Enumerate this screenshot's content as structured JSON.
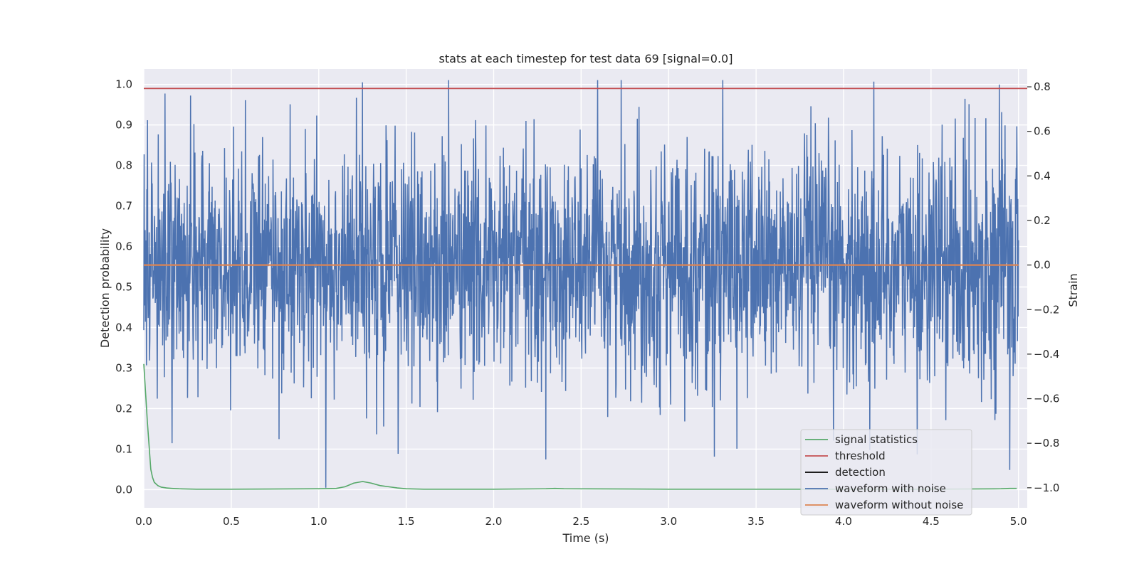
{
  "chart_data": {
    "type": "line",
    "title": "stats at each timestep for test data 69 [signal=0.0]",
    "xlabel": "Time (s)",
    "ylabel": "Detection probability",
    "y2label": "Strain",
    "xlim": [
      0.0,
      5.05
    ],
    "ylim": [
      -0.045,
      1.038
    ],
    "y2lim": [
      -1.09,
      0.88
    ],
    "x_ticks": [
      0.0,
      0.5,
      1.0,
      1.5,
      2.0,
      2.5,
      3.0,
      3.5,
      4.0,
      4.5,
      5.0
    ],
    "x_tick_labels": [
      "0.0",
      "0.5",
      "1.0",
      "1.5",
      "2.0",
      "2.5",
      "3.0",
      "3.5",
      "4.0",
      "4.5",
      "5.0"
    ],
    "y_ticks": [
      0.0,
      0.1,
      0.2,
      0.3,
      0.4,
      0.5,
      0.6,
      0.7,
      0.8,
      0.9,
      1.0
    ],
    "y_tick_labels": [
      "0.0",
      "0.1",
      "0.2",
      "0.3",
      "0.4",
      "0.5",
      "0.6",
      "0.7",
      "0.8",
      "0.9",
      "1.0"
    ],
    "y2_ticks": [
      -1.0,
      -0.8,
      -0.6,
      -0.4,
      -0.2,
      0.0,
      0.2,
      0.4,
      0.6,
      0.8
    ],
    "y2_tick_labels": [
      "−1.0",
      "−0.8",
      "−0.6",
      "−0.4",
      "−0.2",
      "0.0",
      "0.2",
      "0.4",
      "0.6",
      "0.8"
    ],
    "grid": true,
    "background": "#eaeaf2",
    "legend_position": "lower-right",
    "series": [
      {
        "name": "signal statistics",
        "axis": "left",
        "color": "#55a868",
        "x": [
          0.0,
          0.01,
          0.02,
          0.03,
          0.04,
          0.05,
          0.06,
          0.08,
          0.1,
          0.13,
          0.16,
          0.2,
          0.3,
          0.5,
          1.0,
          1.1,
          1.15,
          1.2,
          1.25,
          1.3,
          1.35,
          1.4,
          1.45,
          1.5,
          1.6,
          2.0,
          2.3,
          2.35,
          2.4,
          3.0,
          3.5,
          4.0,
          4.5,
          4.9,
          4.95,
          4.99
        ],
        "y": [
          0.31,
          0.24,
          0.17,
          0.11,
          0.05,
          0.03,
          0.018,
          0.01,
          0.006,
          0.004,
          0.003,
          0.002,
          0.001,
          0.001,
          0.002,
          0.003,
          0.007,
          0.016,
          0.02,
          0.016,
          0.01,
          0.007,
          0.004,
          0.002,
          0.001,
          0.001,
          0.002,
          0.003,
          0.002,
          0.001,
          0.001,
          0.001,
          0.001,
          0.002,
          0.003,
          0.003
        ]
      },
      {
        "name": "threshold",
        "axis": "left",
        "color": "#c44e52",
        "x": [
          0.0,
          5.05
        ],
        "y": [
          0.99,
          0.99
        ]
      },
      {
        "name": "detection",
        "axis": "left",
        "color": "#000000",
        "x": [],
        "y": []
      },
      {
        "name": "waveform with noise",
        "axis": "right",
        "color": "#4c72b0",
        "kind": "noise",
        "x_range": [
          0.0,
          5.0
        ],
        "typical_range": [
          -0.35,
          0.35
        ],
        "extremes": [
          {
            "x": 0.02,
            "y": 0.65
          },
          {
            "x": 0.12,
            "y": 0.77
          },
          {
            "x": 0.16,
            "y": -0.8
          },
          {
            "x": 0.58,
            "y": 0.74
          },
          {
            "x": 1.04,
            "y": -1.0
          },
          {
            "x": 1.25,
            "y": 0.82
          },
          {
            "x": 1.33,
            "y": -0.76
          },
          {
            "x": 2.83,
            "y": 0.71
          },
          {
            "x": 3.26,
            "y": -0.86
          },
          {
            "x": 4.15,
            "y": -0.83
          },
          {
            "x": 4.42,
            "y": -0.85
          },
          {
            "x": 4.89,
            "y": 0.81
          },
          {
            "x": 4.95,
            "y": -0.92
          }
        ]
      },
      {
        "name": "waveform without noise",
        "axis": "right",
        "color": "#dd8452",
        "x": [
          0.0,
          5.0
        ],
        "y": [
          0.0,
          0.0
        ]
      }
    ]
  }
}
